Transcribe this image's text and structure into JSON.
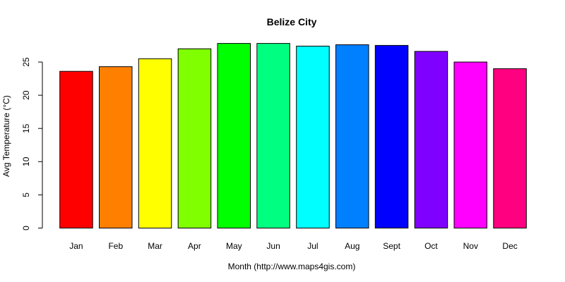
{
  "chart_data": {
    "type": "bar",
    "title": "Belize City",
    "xlabel": "Month (http://www.maps4gis.com)",
    "ylabel": "Avg Temperature (°C)",
    "categories": [
      "Jan",
      "Feb",
      "Mar",
      "Apr",
      "May",
      "Jun",
      "Jul",
      "Aug",
      "Sept",
      "Oct",
      "Nov",
      "Dec"
    ],
    "values": [
      23.6,
      24.3,
      25.5,
      27.0,
      27.8,
      27.8,
      27.4,
      27.6,
      27.5,
      26.6,
      25.0,
      24.0
    ],
    "colors": [
      "#FF0000",
      "#FF8000",
      "#FFFF00",
      "#80FF00",
      "#00FF00",
      "#00FF80",
      "#00FFFF",
      "#0080FF",
      "#0000FF",
      "#8000FF",
      "#FF00FF",
      "#FF0080"
    ],
    "ylim": [
      0,
      28
    ],
    "yticks": [
      "0",
      "5",
      "10",
      "15",
      "20",
      "25"
    ],
    "grid": false,
    "legend": "none"
  }
}
